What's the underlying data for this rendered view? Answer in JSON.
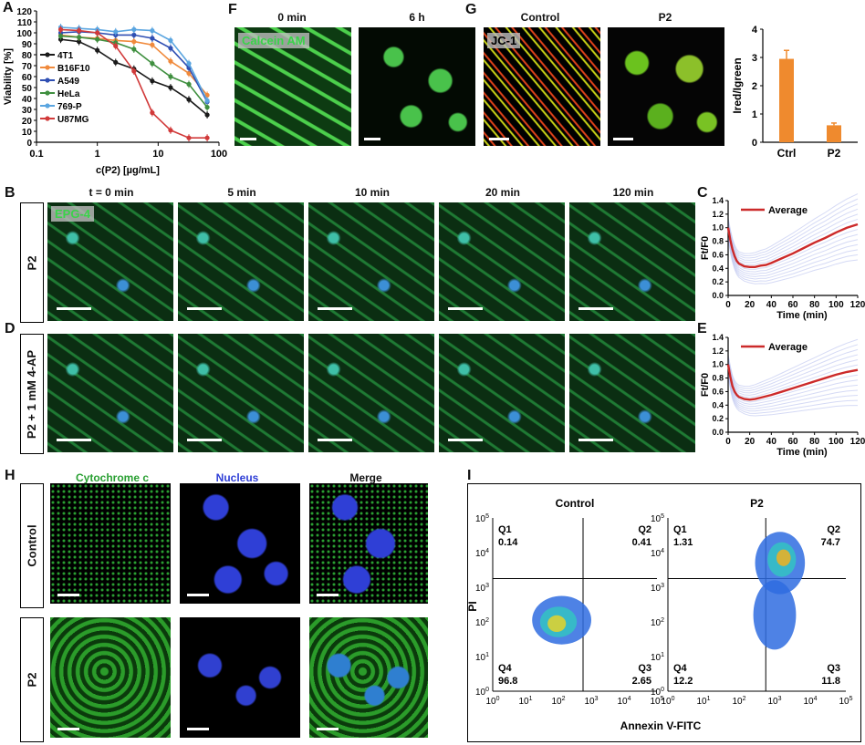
{
  "panels": {
    "A": "A",
    "B": "B",
    "C": "C",
    "D": "D",
    "E": "E",
    "F": "F",
    "G": "G",
    "H": "H",
    "I": "I"
  },
  "chart_data": [
    {
      "id": "A",
      "type": "line",
      "xlabel": "c(P2) [µg/mL]",
      "ylabel": "Viability [%]",
      "xscale": "log",
      "xlim": [
        0.1,
        100
      ],
      "ylim": [
        0,
        120
      ],
      "xticks": [
        "0.1",
        "1",
        "10",
        "100"
      ],
      "yticks": [
        "0",
        "10",
        "20",
        "30",
        "40",
        "50",
        "60",
        "70",
        "80",
        "90",
        "100",
        "110",
        "120"
      ],
      "x": [
        0.25,
        0.5,
        1,
        2,
        4,
        8,
        16,
        32,
        64
      ],
      "legend_position": "left",
      "series": [
        {
          "name": "4T1",
          "color": "#1a1a1a",
          "values": [
            94,
            92,
            84,
            73,
            67,
            56,
            50,
            39,
            25
          ]
        },
        {
          "name": "B16F10",
          "color": "#f08a3c",
          "values": [
            98,
            96,
            95,
            93,
            92,
            89,
            74,
            63,
            43
          ]
        },
        {
          "name": "A549",
          "color": "#2f4fb3",
          "values": [
            100,
            101,
            100,
            98,
            98,
            95,
            86,
            68,
            37
          ]
        },
        {
          "name": "HeLa",
          "color": "#3f8f3f",
          "values": [
            97,
            96,
            94,
            91,
            85,
            72,
            60,
            53,
            32
          ]
        },
        {
          "name": "769-P",
          "color": "#5aa5e0",
          "values": [
            105,
            104,
            103,
            101,
            103,
            102,
            93,
            72,
            38
          ]
        },
        {
          "name": "U87MG",
          "color": "#d13a3a",
          "values": [
            103,
            102,
            100,
            88,
            65,
            27,
            11,
            4,
            4
          ]
        }
      ]
    },
    {
      "id": "C",
      "type": "line",
      "xlabel": "Time (min)",
      "ylabel": "Ft/F0",
      "xlim": [
        0,
        120
      ],
      "ylim": [
        0,
        1.4
      ],
      "xticks": [
        "0",
        "20",
        "40",
        "60",
        "80",
        "100",
        "120"
      ],
      "yticks": [
        "0.0",
        "0.2",
        "0.4",
        "0.6",
        "0.8",
        "1.0",
        "1.2",
        "1.4"
      ],
      "legend": "Average",
      "x": [
        0,
        2,
        4,
        6,
        8,
        10,
        15,
        20,
        25,
        30,
        35,
        40,
        50,
        60,
        70,
        80,
        90,
        100,
        110,
        120
      ],
      "series": [
        {
          "name": "Average",
          "color": "#cc2a2a",
          "values": [
            1.0,
            0.82,
            0.68,
            0.58,
            0.51,
            0.47,
            0.43,
            0.42,
            0.42,
            0.44,
            0.45,
            0.48,
            0.55,
            0.62,
            0.7,
            0.78,
            0.85,
            0.93,
            1.0,
            1.05
          ]
        }
      ]
    },
    {
      "id": "E",
      "type": "line",
      "xlabel": "Time (min)",
      "ylabel": "Ft/F0",
      "xlim": [
        0,
        120
      ],
      "ylim": [
        0,
        1.4
      ],
      "xticks": [
        "0",
        "20",
        "40",
        "60",
        "80",
        "100",
        "120"
      ],
      "yticks": [
        "0.0",
        "0.2",
        "0.4",
        "0.6",
        "0.8",
        "1.0",
        "1.2",
        "1.4"
      ],
      "legend": "Average",
      "x": [
        0,
        2,
        4,
        6,
        8,
        10,
        15,
        20,
        25,
        30,
        40,
        50,
        60,
        70,
        80,
        90,
        100,
        110,
        120
      ],
      "series": [
        {
          "name": "Average",
          "color": "#cc2a2a",
          "values": [
            1.0,
            0.82,
            0.68,
            0.6,
            0.55,
            0.52,
            0.49,
            0.48,
            0.49,
            0.51,
            0.55,
            0.6,
            0.65,
            0.7,
            0.75,
            0.8,
            0.85,
            0.89,
            0.92
          ]
        }
      ]
    },
    {
      "id": "G-bar",
      "type": "bar",
      "ylabel": "Ired/Igreen",
      "categories": [
        "Ctrl",
        "P2"
      ],
      "values": [
        2.95,
        0.6
      ],
      "errors": [
        0.3,
        0.08
      ],
      "ylim": [
        0,
        4
      ],
      "yticks": [
        "0",
        "1",
        "2",
        "3",
        "4"
      ],
      "color": "#ef8a2e"
    },
    {
      "id": "I",
      "type": "scatter",
      "xlabel": "Annexin V-FITC",
      "ylabel": "PI",
      "xscale": "log",
      "yscale": "log",
      "axis_ticks": [
        "10^0",
        "10^1",
        "10^2",
        "10^3",
        "10^4",
        "10^5"
      ],
      "plots": [
        {
          "title": "Control",
          "quadrants": {
            "Q1": "0.14",
            "Q2": "0.41",
            "Q3": "2.65",
            "Q4": "96.8"
          }
        },
        {
          "title": "P2",
          "quadrants": {
            "Q1": "1.31",
            "Q2": "74.7",
            "Q3": "11.8",
            "Q4": "12.2"
          }
        }
      ]
    }
  ],
  "F": {
    "headers": [
      "0 min",
      "6 h"
    ],
    "tag": "Calcein AM"
  },
  "G": {
    "headers": [
      "Control",
      "P2"
    ],
    "tag": "JC-1"
  },
  "B": {
    "time_headers": [
      "t = 0 min",
      "5 min",
      "10 min",
      "20 min",
      "120 min"
    ],
    "tag": "EPG-4",
    "row_label": "P2"
  },
  "D": {
    "row_label": "P2 + 1 mM 4-AP"
  },
  "H": {
    "headers": [
      "Cytochrome c",
      "Nucleus",
      "Merge"
    ],
    "header_colors": [
      "#2aa033",
      "#2f3fd6",
      "#111111"
    ],
    "row_labels": [
      "Control",
      "P2"
    ]
  }
}
